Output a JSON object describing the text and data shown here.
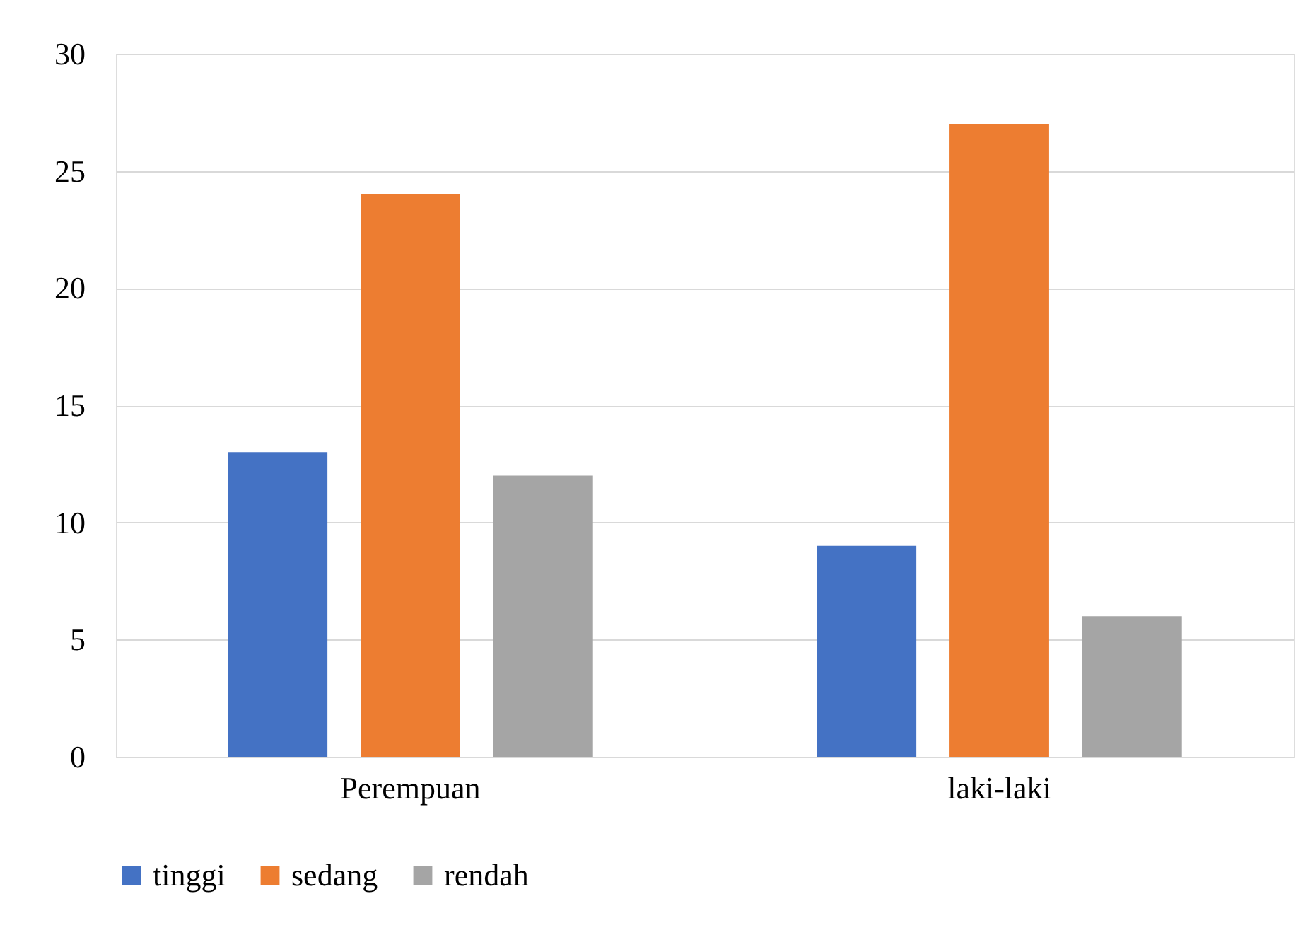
{
  "chart_data": {
    "type": "bar",
    "categories": [
      "Perempuan",
      "laki-laki"
    ],
    "series": [
      {
        "name": "tinggi",
        "color": "#4472c4",
        "values": [
          13,
          9
        ]
      },
      {
        "name": "sedang",
        "color": "#ed7d31",
        "values": [
          24,
          27
        ]
      },
      {
        "name": "rendah",
        "color": "#a5a5a5",
        "values": [
          12,
          6
        ]
      }
    ],
    "ylim": [
      0,
      30
    ],
    "yticks": [
      0,
      5,
      10,
      15,
      20,
      25,
      30
    ],
    "grid": "y",
    "legend": "bottom"
  }
}
